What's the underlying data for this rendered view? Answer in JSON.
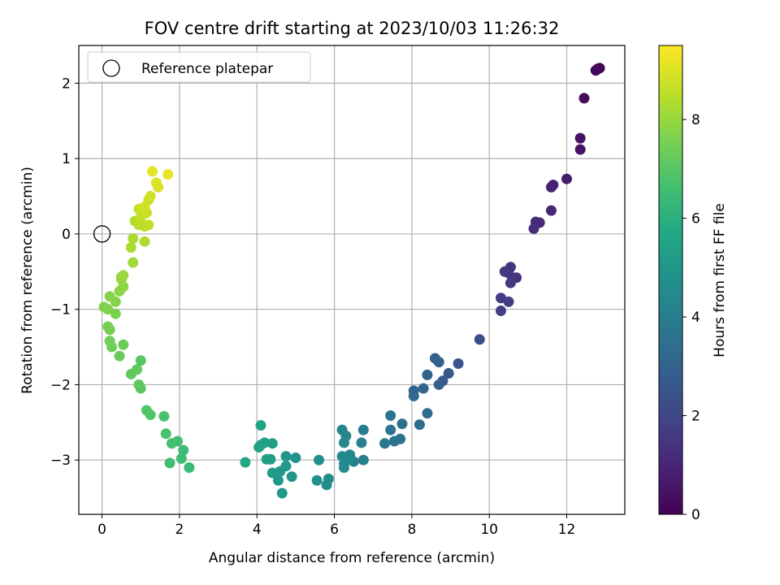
{
  "chart_data": {
    "type": "scatter",
    "title": "FOV centre drift starting at 2023/10/03 11:26:32",
    "xlabel": "Angular distance from reference (arcmin)",
    "ylabel": "Rotation from reference (arcmin)",
    "xlim": [
      -0.6,
      13.5
    ],
    "ylim": [
      -3.72,
      2.5
    ],
    "xticks": [
      0,
      2,
      4,
      6,
      8,
      10,
      12
    ],
    "yticks": [
      -3,
      -2,
      -1,
      0,
      1,
      2
    ],
    "grid": true,
    "legend": {
      "position": "top-left",
      "entries": [
        "Reference platepar"
      ]
    },
    "reference_point": {
      "x": 0,
      "y": 0
    },
    "colorbar": {
      "label": "Hours from first FF file",
      "min": 0,
      "max": 9.5,
      "ticks": [
        0,
        2,
        4,
        6,
        8
      ],
      "colormap": "viridis"
    },
    "points": [
      [
        12.85,
        2.2,
        0.05
      ],
      [
        12.8,
        2.19,
        0.1
      ],
      [
        12.75,
        2.17,
        0.15
      ],
      [
        12.45,
        1.8,
        0.3
      ],
      [
        12.35,
        1.27,
        0.45
      ],
      [
        12.35,
        1.12,
        0.5
      ],
      [
        12.0,
        0.73,
        0.7
      ],
      [
        11.65,
        0.65,
        0.85
      ],
      [
        11.6,
        0.62,
        0.9
      ],
      [
        11.6,
        0.31,
        1.0
      ],
      [
        11.3,
        0.15,
        1.1
      ],
      [
        11.2,
        0.16,
        1.15
      ],
      [
        11.15,
        0.07,
        1.2
      ],
      [
        10.7,
        -0.58,
        1.4
      ],
      [
        10.55,
        -0.44,
        1.45
      ],
      [
        10.5,
        -0.52,
        1.5
      ],
      [
        10.4,
        -0.5,
        1.55
      ],
      [
        10.55,
        -0.65,
        1.6
      ],
      [
        10.3,
        -0.85,
        1.7
      ],
      [
        10.5,
        -0.9,
        1.75
      ],
      [
        10.3,
        -1.02,
        1.8
      ],
      [
        9.75,
        -1.4,
        2.2
      ],
      [
        9.2,
        -1.72,
        2.5
      ],
      [
        8.95,
        -1.85,
        2.6
      ],
      [
        8.8,
        -1.95,
        2.7
      ],
      [
        8.7,
        -2.0,
        2.8
      ],
      [
        8.7,
        -1.7,
        2.85
      ],
      [
        8.6,
        -1.65,
        2.9
      ],
      [
        8.4,
        -1.87,
        3.0
      ],
      [
        8.3,
        -2.05,
        3.05
      ],
      [
        8.05,
        -2.08,
        3.15
      ],
      [
        8.05,
        -2.15,
        3.2
      ],
      [
        8.4,
        -2.38,
        3.3
      ],
      [
        8.2,
        -2.53,
        3.35
      ],
      [
        7.75,
        -2.52,
        3.5
      ],
      [
        7.7,
        -2.72,
        3.55
      ],
      [
        7.55,
        -2.75,
        3.6
      ],
      [
        7.45,
        -2.6,
        3.65
      ],
      [
        7.45,
        -2.41,
        3.7
      ],
      [
        7.3,
        -2.78,
        3.8
      ],
      [
        6.75,
        -2.6,
        4.0
      ],
      [
        6.7,
        -2.77,
        4.05
      ],
      [
        6.75,
        -3.0,
        4.15
      ],
      [
        6.5,
        -3.02,
        4.2
      ],
      [
        6.4,
        -2.93,
        4.25
      ],
      [
        6.3,
        -2.68,
        4.3
      ],
      [
        6.2,
        -2.6,
        4.35
      ],
      [
        6.25,
        -2.77,
        4.4
      ],
      [
        6.2,
        -2.95,
        4.45
      ],
      [
        6.25,
        -3.05,
        4.5
      ],
      [
        6.35,
        -2.97,
        4.5
      ],
      [
        6.25,
        -3.1,
        4.55
      ],
      [
        5.85,
        -3.25,
        4.6
      ],
      [
        5.8,
        -3.33,
        4.65
      ],
      [
        5.6,
        -3.0,
        4.7
      ],
      [
        5.55,
        -3.27,
        4.75
      ],
      [
        5.0,
        -2.97,
        4.85
      ],
      [
        4.9,
        -3.22,
        4.9
      ],
      [
        4.75,
        -2.95,
        5.0
      ],
      [
        4.75,
        -3.08,
        5.05
      ],
      [
        4.6,
        -3.15,
        5.05
      ],
      [
        4.55,
        -3.27,
        5.1
      ],
      [
        4.65,
        -3.44,
        5.15
      ],
      [
        4.4,
        -3.17,
        5.2
      ],
      [
        4.35,
        -2.99,
        5.25
      ],
      [
        4.25,
        -2.99,
        5.3
      ],
      [
        4.4,
        -2.78,
        5.35
      ],
      [
        4.2,
        -2.77,
        5.4
      ],
      [
        4.1,
        -2.8,
        5.45
      ],
      [
        4.05,
        -2.83,
        5.5
      ],
      [
        4.1,
        -2.54,
        5.55
      ],
      [
        3.7,
        -3.03,
        5.65
      ],
      [
        2.25,
        -3.1,
        6.4
      ],
      [
        2.1,
        -2.87,
        6.45
      ],
      [
        2.05,
        -2.98,
        6.5
      ],
      [
        1.75,
        -3.04,
        6.55
      ],
      [
        1.95,
        -2.75,
        6.6
      ],
      [
        1.8,
        -2.78,
        6.65
      ],
      [
        1.65,
        -2.65,
        6.7
      ],
      [
        1.6,
        -2.42,
        6.75
      ],
      [
        1.25,
        -2.4,
        6.85
      ],
      [
        1.15,
        -2.34,
        6.9
      ],
      [
        1.0,
        -1.68,
        7.0
      ],
      [
        1.0,
        -2.05,
        7.05
      ],
      [
        0.95,
        -2.0,
        7.1
      ],
      [
        0.9,
        -1.8,
        7.15
      ],
      [
        0.75,
        -1.86,
        7.2
      ],
      [
        0.45,
        -1.62,
        7.3
      ],
      [
        0.55,
        -1.47,
        7.35
      ],
      [
        0.25,
        -1.5,
        7.4
      ],
      [
        0.2,
        -1.42,
        7.45
      ],
      [
        0.2,
        -1.27,
        7.5
      ],
      [
        0.15,
        -1.23,
        7.55
      ],
      [
        0.35,
        -1.06,
        7.6
      ],
      [
        0.05,
        -0.97,
        7.65
      ],
      [
        0.15,
        -1.0,
        7.7
      ],
      [
        0.35,
        -0.9,
        7.75
      ],
      [
        0.2,
        -0.83,
        7.8
      ],
      [
        0.45,
        -0.76,
        7.85
      ],
      [
        0.55,
        -0.7,
        7.9
      ],
      [
        0.5,
        -0.6,
        7.95
      ],
      [
        0.5,
        -0.57,
        8.0
      ],
      [
        0.55,
        -0.55,
        8.05
      ],
      [
        0.8,
        -0.38,
        8.15
      ],
      [
        0.75,
        -0.18,
        8.25
      ],
      [
        0.8,
        -0.06,
        8.3
      ],
      [
        1.1,
        -0.1,
        8.35
      ],
      [
        0.85,
        0.17,
        8.4
      ],
      [
        0.95,
        0.12,
        8.45
      ],
      [
        1.1,
        0.1,
        8.5
      ],
      [
        1.2,
        0.12,
        8.55
      ],
      [
        1.0,
        0.22,
        8.6
      ],
      [
        0.95,
        0.33,
        8.65
      ],
      [
        1.15,
        0.28,
        8.7
      ],
      [
        1.2,
        0.45,
        8.75
      ],
      [
        1.25,
        0.5,
        8.8
      ],
      [
        1.1,
        0.36,
        8.85
      ],
      [
        1.45,
        0.62,
        8.95
      ],
      [
        1.4,
        0.68,
        9.0
      ],
      [
        1.3,
        0.83,
        9.1
      ],
      [
        1.7,
        0.79,
        9.2
      ]
    ]
  }
}
